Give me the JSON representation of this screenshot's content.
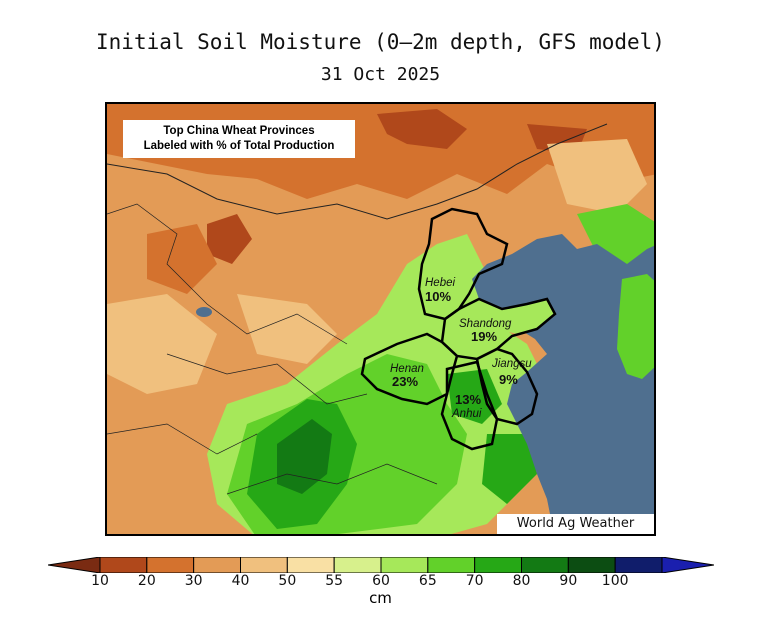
{
  "title": "Initial Soil Moisture (0–2m depth, GFS model)",
  "date": "31 Oct 2025",
  "map": {
    "info_box": {
      "line1": "Top China Wheat Provinces",
      "line2": "Labeled with % of Total Production"
    },
    "provinces": [
      {
        "name": "Hebei",
        "percent": "10%"
      },
      {
        "name": "Shandong",
        "percent": "19%"
      },
      {
        "name": "Henan",
        "percent": "23%"
      },
      {
        "name": "Jiangsu",
        "percent": "9%"
      },
      {
        "name": "Anhui",
        "percent": "13%"
      }
    ],
    "credit": "World Ag Weather",
    "colors": {
      "ocean": "#4f6f8f",
      "province_border": "#000000"
    }
  },
  "colorbar": {
    "unit": "cm",
    "ticks": [
      "10",
      "20",
      "30",
      "40",
      "50",
      "55",
      "60",
      "65",
      "70",
      "80",
      "90",
      "100"
    ],
    "colors": [
      "#7a2b12",
      "#b0481b",
      "#d4722e",
      "#e39b56",
      "#f0c07e",
      "#f9e0a4",
      "#d7f08c",
      "#a6e85a",
      "#62d12a",
      "#26a816",
      "#137a14",
      "#0c4d12",
      "#101d6b",
      "#1a1fae"
    ]
  }
}
